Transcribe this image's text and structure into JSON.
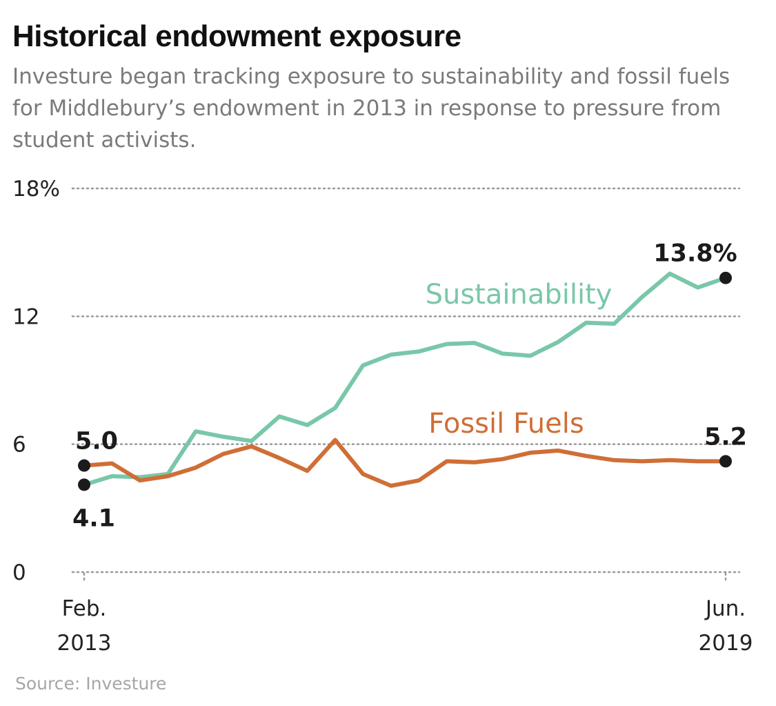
{
  "title": "Historical endowment exposure",
  "subtitle": "Investure began tracking exposure to sustainability and fossil fuels for Middlebury’s endowment in 2013 in response to pressure from student activists.",
  "source": "Source: Investure",
  "chart_data": {
    "type": "line",
    "ylim": [
      0,
      18
    ],
    "yticks": [
      {
        "value": 18,
        "label": "18%"
      },
      {
        "value": 12,
        "label": "12"
      },
      {
        "value": 6,
        "label": "6"
      },
      {
        "value": 0,
        "label": "0"
      }
    ],
    "xticks": [
      {
        "index": 0,
        "lines": [
          "Feb.",
          "2013"
        ]
      },
      {
        "index": 23,
        "lines": [
          "Jun.",
          "2019"
        ]
      }
    ],
    "grid": true,
    "series": [
      {
        "name": "Sustainability",
        "color": "#79c7a9",
        "values": [
          4.1,
          4.5,
          4.45,
          4.6,
          6.6,
          6.35,
          6.15,
          7.3,
          6.9,
          7.7,
          9.7,
          10.2,
          10.35,
          10.7,
          10.75,
          10.25,
          10.15,
          10.8,
          11.7,
          11.65,
          12.9,
          14.0,
          13.35,
          13.8
        ]
      },
      {
        "name": "Fossil Fuels",
        "color": "#cf6e36",
        "values": [
          5.0,
          5.1,
          4.3,
          4.5,
          4.9,
          5.55,
          5.9,
          5.35,
          4.75,
          6.2,
          4.6,
          4.05,
          4.3,
          5.2,
          5.15,
          5.3,
          5.6,
          5.7,
          5.45,
          5.25,
          5.2,
          5.25,
          5.2,
          5.2
        ]
      }
    ],
    "annotations": [
      {
        "series": 0,
        "index": 0,
        "text": "4.1"
      },
      {
        "series": 1,
        "index": 0,
        "text": "5.0"
      },
      {
        "series": 0,
        "index": 23,
        "text": "13.8%"
      },
      {
        "series": 1,
        "index": 23,
        "text": "5.2"
      }
    ]
  }
}
